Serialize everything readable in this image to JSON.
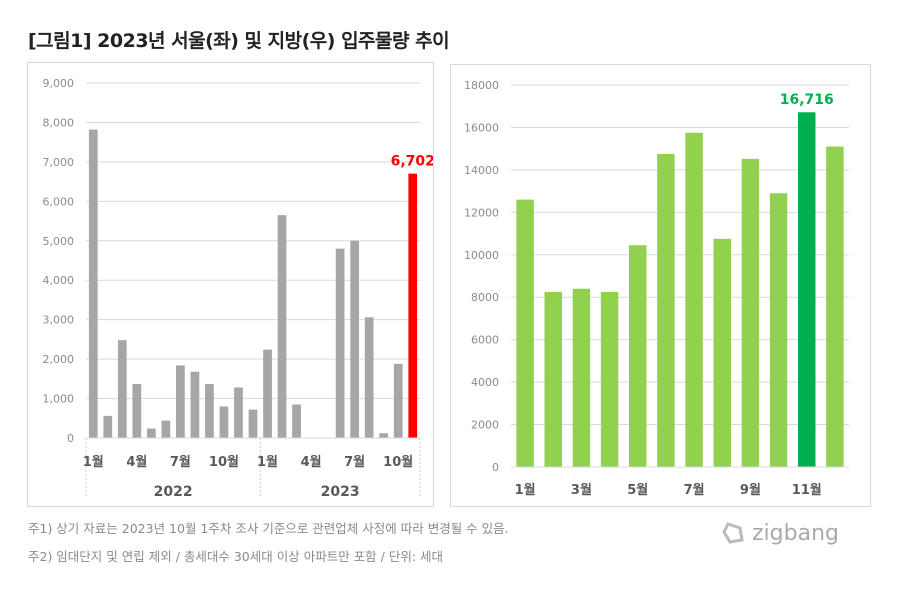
{
  "title": "[그림1]  2023년 서울(좌) 및 지방(우) 입주물량 추이",
  "notes": [
    "주1) 상기 자료는 2023년 10월 1주차 조사 기준으로 관련업체 사정에 따라 변경될 수 있음.",
    "주2) 임대단지 및 연립 제외 / 총세대수 30세대 이상 아파트만 포함 / 단위: 세대"
  ],
  "logo": "zigbang",
  "chart_data": [
    {
      "type": "bar",
      "ylim": [
        0,
        9000
      ],
      "yticks": [
        "0",
        "1,000",
        "2,000",
        "3,000",
        "4,000",
        "5,000",
        "6,000",
        "7,000",
        "8,000",
        "9,000"
      ],
      "groups": [
        {
          "label": "2022",
          "tick_labels": [
            "1월",
            "",
            "",
            "4월",
            "",
            "",
            "7월",
            "",
            "",
            "10월",
            "",
            ""
          ]
        },
        {
          "label": "2023",
          "tick_labels": [
            "1월",
            "",
            "",
            "4월",
            "",
            "",
            "7월",
            "",
            "",
            "10월",
            ""
          ]
        }
      ],
      "values": [
        7820,
        560,
        2480,
        1370,
        240,
        440,
        1840,
        1680,
        1370,
        800,
        1280,
        720,
        2240,
        5650,
        850,
        0,
        0,
        4800,
        5000,
        3060,
        120,
        1880,
        6702
      ],
      "highlight_index": 22,
      "highlight_label": "6,702",
      "colors": {
        "bar": "#a6a6a6",
        "highlight": "#ff0000"
      },
      "grid": true
    },
    {
      "type": "bar",
      "ylim": [
        0,
        18000
      ],
      "yticks": [
        "0",
        "2000",
        "4000",
        "6000",
        "8000",
        "10000",
        "12000",
        "14000",
        "16000",
        "18000"
      ],
      "categories": [
        "1월",
        "",
        "3월",
        "",
        "5월",
        "",
        "7월",
        "",
        "9월",
        "",
        "11월",
        ""
      ],
      "values": [
        12600,
        8250,
        8400,
        8250,
        10450,
        14750,
        15750,
        10750,
        14520,
        12900,
        16716,
        15100
      ],
      "highlight_index": 10,
      "highlight_label": "16,716",
      "colors": {
        "bar": "#92d050",
        "highlight": "#00b050"
      },
      "grid": true
    }
  ]
}
